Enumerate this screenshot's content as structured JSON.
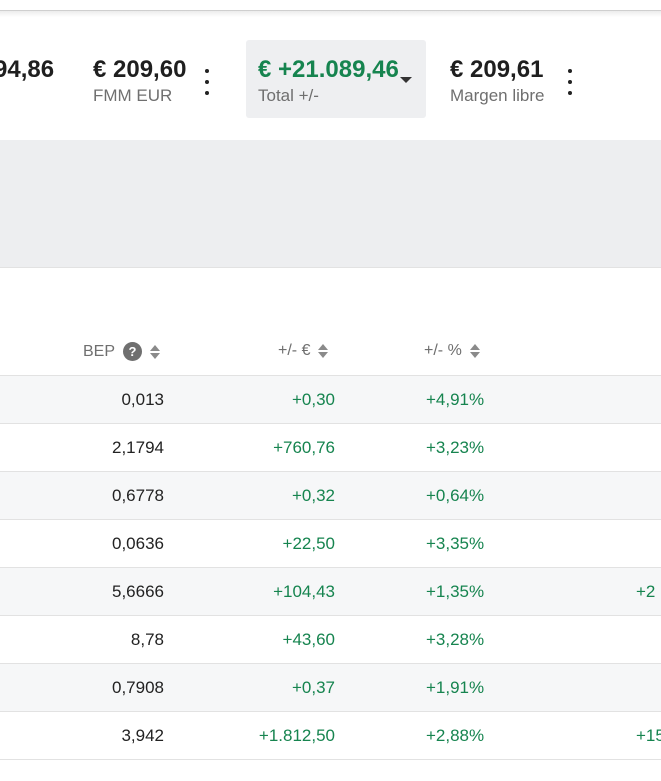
{
  "summary": [
    {
      "value": "94,86",
      "label": ""
    },
    {
      "value": "€ 209,60",
      "label": "FMM EUR"
    },
    {
      "value": "€ +21.089,46",
      "label": "Total +/-"
    },
    {
      "value": "€ 209,61",
      "label": "Margen libre"
    }
  ],
  "table": {
    "headers": {
      "bep": "BEP",
      "abs": "+/- €",
      "pct": "+/- %"
    },
    "help_icon": "?",
    "rows": [
      {
        "bep": "0,013",
        "abs": "+0,30",
        "pct": "+4,91%",
        "ext": ""
      },
      {
        "bep": "2,1794",
        "abs": "+760,76",
        "pct": "+3,23%",
        "ext": ""
      },
      {
        "bep": "0,6778",
        "abs": "+0,32",
        "pct": "+0,64%",
        "ext": ""
      },
      {
        "bep": "0,0636",
        "abs": "+22,50",
        "pct": "+3,35%",
        "ext": ""
      },
      {
        "bep": "5,6666",
        "abs": "+104,43",
        "pct": "+1,35%",
        "ext": "+2"
      },
      {
        "bep": "8,78",
        "abs": "+43,60",
        "pct": "+3,28%",
        "ext": ""
      },
      {
        "bep": "0,7908",
        "abs": "+0,37",
        "pct": "+1,91%",
        "ext": ""
      },
      {
        "bep": "3,942",
        "abs": "+1.812,50",
        "pct": "+2,88%",
        "ext": "+15"
      }
    ]
  },
  "colors": {
    "positive": "#16844f",
    "muted": "#6f6f6f",
    "band": "#edeef0"
  }
}
